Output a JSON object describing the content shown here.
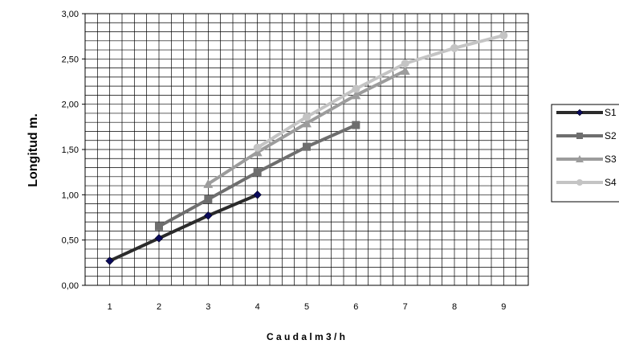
{
  "chart_data": {
    "type": "line",
    "title": "",
    "xlabel": "C a u d a l  m 3 / h",
    "ylabel": "Longitud m.",
    "x_ticks": [
      "1",
      "2",
      "3",
      "4",
      "5",
      "6",
      "7",
      "8",
      "9"
    ],
    "y_ticks": [
      "0,00",
      "0,50",
      "1,00",
      "1,50",
      "2,00",
      "2,50",
      "3,00"
    ],
    "xlim": [
      0.5,
      9.5
    ],
    "ylim": [
      0,
      3
    ],
    "grid": "horizontal every 0.10, vertical every 0.25",
    "legend": "right",
    "series": [
      {
        "name": "S1",
        "color": "#2b2b2b",
        "marker": "diamond",
        "marker_color": "#0a0a5a",
        "x": [
          1,
          2,
          3,
          4
        ],
        "y": [
          0.27,
          0.52,
          0.77,
          1.0
        ]
      },
      {
        "name": "S2",
        "color": "#6e6e6e",
        "marker": "square",
        "marker_color": "#6e6e6e",
        "x": [
          2,
          3,
          4,
          5,
          6
        ],
        "y": [
          0.65,
          0.95,
          1.25,
          1.53,
          1.77
        ]
      },
      {
        "name": "S3",
        "color": "#9c9c9c",
        "marker": "triangle",
        "marker_color": "#9c9c9c",
        "x": [
          3,
          4,
          5,
          6,
          7
        ],
        "y": [
          1.12,
          1.47,
          1.79,
          2.1,
          2.37
        ]
      },
      {
        "name": "S4",
        "color": "#c4c4c4",
        "marker": "circle",
        "marker_color": "#c4c4c4",
        "x": [
          4,
          5,
          6,
          7,
          8,
          9
        ],
        "y": [
          1.52,
          1.86,
          2.17,
          2.45,
          2.62,
          2.76
        ]
      }
    ]
  }
}
